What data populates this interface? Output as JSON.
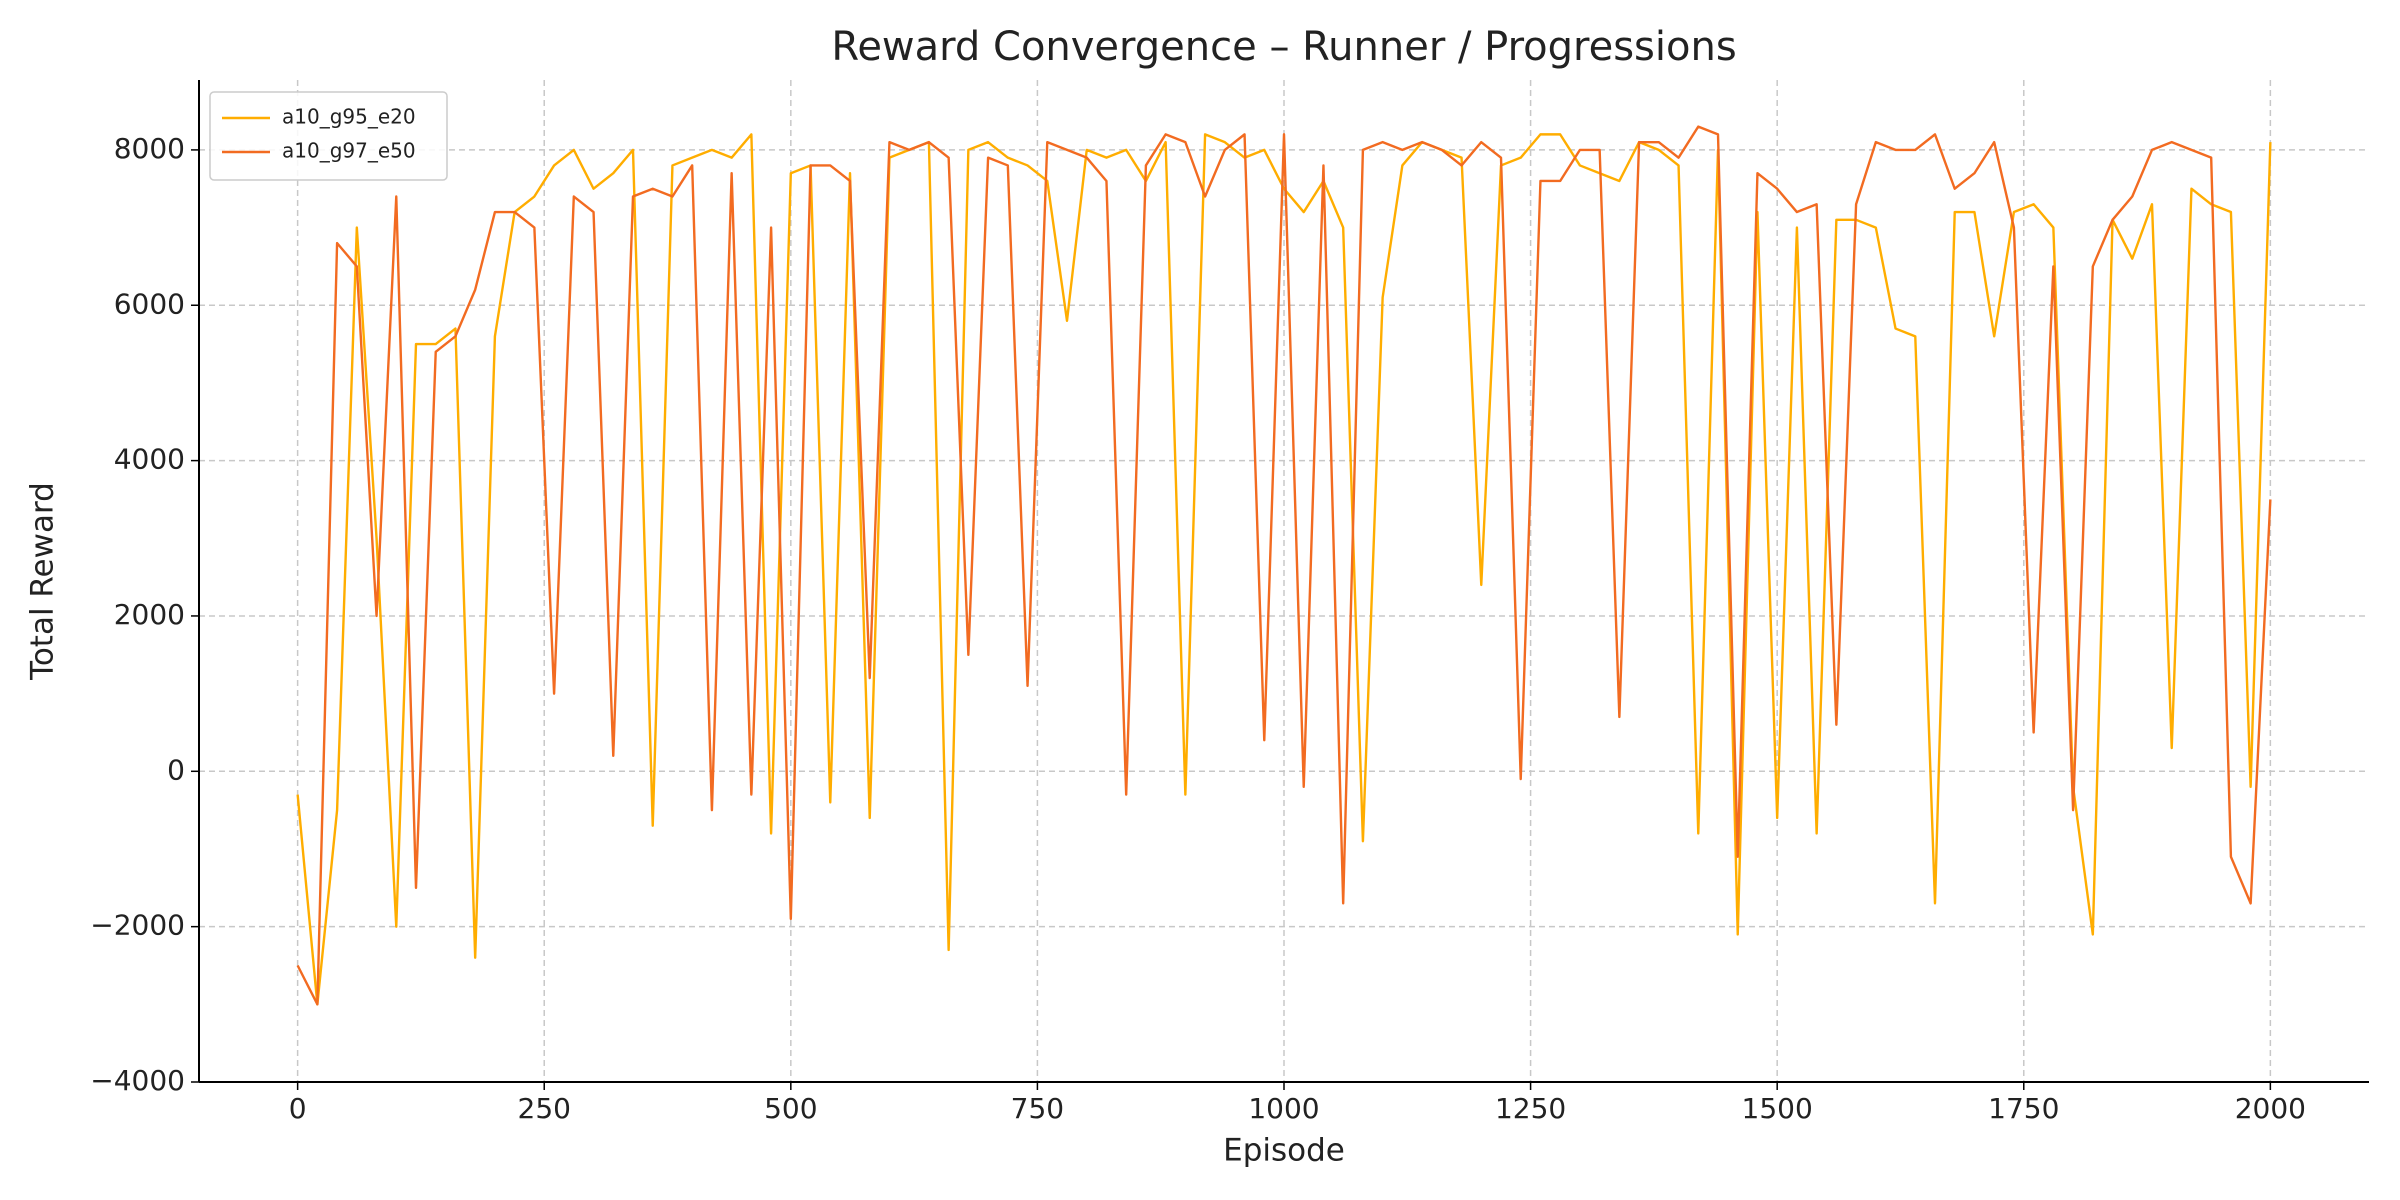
{
  "chart_data": {
    "type": "line",
    "title": "Reward Convergence – Runner / Progressions",
    "xlabel": "Episode",
    "ylabel": "Total Reward",
    "x": [
      0,
      20,
      40,
      60,
      80,
      100,
      120,
      140,
      160,
      180,
      200,
      220,
      240,
      260,
      280,
      300,
      320,
      340,
      360,
      380,
      400,
      420,
      440,
      460,
      480,
      500,
      520,
      540,
      560,
      580,
      600,
      620,
      640,
      660,
      680,
      700,
      720,
      740,
      760,
      780,
      800,
      820,
      840,
      860,
      880,
      900,
      920,
      940,
      960,
      980,
      1000,
      1020,
      1040,
      1060,
      1080,
      1100,
      1120,
      1140,
      1160,
      1180,
      1200,
      1220,
      1240,
      1260,
      1280,
      1300,
      1320,
      1340,
      1360,
      1380,
      1400,
      1420,
      1440,
      1460,
      1480,
      1500,
      1520,
      1540,
      1560,
      1580,
      1600,
      1620,
      1640,
      1660,
      1680,
      1700,
      1720,
      1740,
      1760,
      1780,
      1800,
      1820,
      1840,
      1860,
      1880,
      1900,
      1920,
      1940,
      1960,
      1980,
      2000
    ],
    "series": [
      {
        "name": "a10_g95_e20",
        "color": "#ffad00",
        "values": [
          -300,
          -3000,
          -500,
          7000,
          3000,
          -2000,
          5500,
          5500,
          5700,
          -2400,
          5600,
          7200,
          7400,
          7800,
          8000,
          7500,
          7700,
          8000,
          -700,
          7800,
          7900,
          8000,
          7900,
          8200,
          -800,
          7700,
          7800,
          -400,
          7700,
          -600,
          7900,
          8000,
          8100,
          -2300,
          8000,
          8100,
          7900,
          7800,
          7600,
          5800,
          8000,
          7900,
          8000,
          7600,
          8100,
          -300,
          8200,
          8100,
          7900,
          8000,
          7500,
          7200,
          7600,
          7000,
          -900,
          6100,
          7800,
          8100,
          8000,
          7900,
          2400,
          7800,
          7900,
          8200,
          8200,
          7800,
          7700,
          7600,
          8100,
          8000,
          7800,
          -800,
          8000,
          -2100,
          7200,
          -600,
          7000,
          -800,
          7100,
          7100,
          7000,
          5700,
          5600,
          -1700,
          7200,
          7200,
          5600,
          7200,
          7300,
          7000,
          -200,
          -2100,
          7100,
          6600,
          7300,
          300,
          7500,
          7300,
          7200,
          -200,
          8100
        ]
      },
      {
        "name": "a10_g97_e50",
        "color": "#f26b21",
        "values": [
          -2500,
          -3000,
          6800,
          6500,
          2000,
          7400,
          -1500,
          5400,
          5600,
          6200,
          7200,
          7200,
          7000,
          1000,
          7400,
          7200,
          200,
          7400,
          7500,
          7400,
          7800,
          -500,
          7700,
          -300,
          7000,
          -1900,
          7800,
          7800,
          7600,
          1200,
          8100,
          8000,
          8100,
          7900,
          1500,
          7900,
          7800,
          1100,
          8100,
          8000,
          7900,
          7600,
          -300,
          7800,
          8200,
          8100,
          7400,
          8000,
          8200,
          400,
          8200,
          -200,
          7800,
          -1700,
          8000,
          8100,
          8000,
          8100,
          8000,
          7800,
          8100,
          7900,
          -100,
          7600,
          7600,
          8000,
          8000,
          700,
          8100,
          8100,
          7900,
          8300,
          8200,
          -1100,
          7700,
          7500,
          7200,
          7300,
          600,
          7300,
          8100,
          8000,
          8000,
          8200,
          7500,
          7700,
          8100,
          7000,
          500,
          6500,
          -500,
          6500,
          7100,
          7400,
          8000,
          8100,
          8000,
          7900,
          -1100,
          -1700,
          3500
        ]
      }
    ],
    "xlim": [
      -100,
      2100
    ],
    "ylim": [
      -4000,
      8900
    ],
    "xticks": [
      0,
      250,
      500,
      750,
      1000,
      1250,
      1500,
      1750,
      2000
    ],
    "yticks": [
      {
        "value": -4000,
        "label": "−4000"
      },
      {
        "value": -2000,
        "label": "−2000"
      },
      0,
      2000,
      4000,
      6000,
      8000
    ],
    "grid": true,
    "legend": "upper-left"
  }
}
